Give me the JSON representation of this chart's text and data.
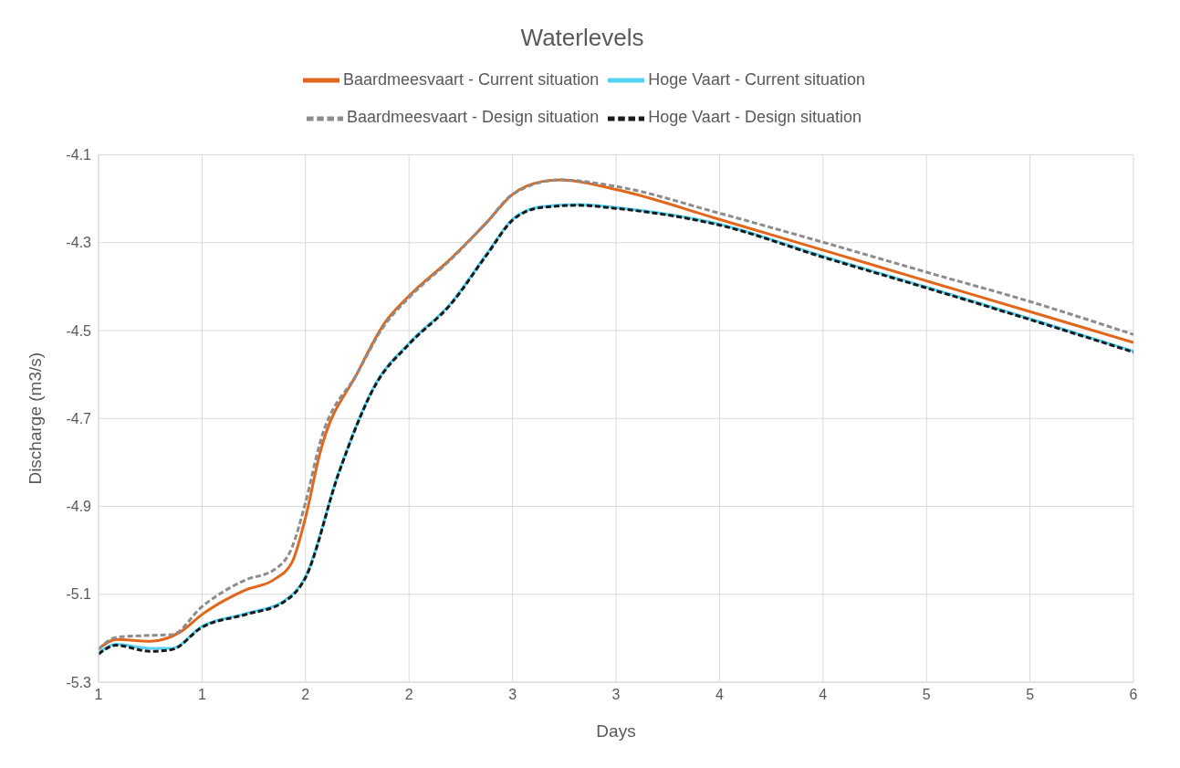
{
  "chart_data": {
    "type": "line",
    "title": "Waterlevels",
    "xlabel": "Days",
    "ylabel": "Discharge (m3/s)",
    "xlim": [
      1,
      6
    ],
    "xticks": [
      1,
      {
        "value": 1.5,
        "label": "1"
      },
      2,
      {
        "value": 2.5,
        "label": "2"
      },
      3,
      {
        "value": 3.5,
        "label": "3"
      },
      4,
      {
        "value": 4.5,
        "label": "4"
      },
      5,
      {
        "value": 5.5,
        "label": "5"
      },
      6
    ],
    "ylim": [
      -5.3,
      -4.1
    ],
    "yticks": [
      -5.3,
      -5.1,
      -4.9,
      -4.7,
      -4.5,
      -4.3,
      -4.1
    ],
    "grid": true,
    "legend": "top",
    "marker": "none",
    "series": [
      {
        "name": "Baardmeesvaart - Current situation",
        "color": "#e2661c",
        "line_style": "solid",
        "x": [
          1,
          1.085,
          1.25,
          1.398,
          1.5,
          1.712,
          1.846,
          1.935,
          2,
          2.07,
          2.25,
          2.38,
          2.5,
          2.7,
          2.875,
          3,
          3.14,
          3.23,
          3.5,
          4,
          4.5,
          5,
          5.5,
          6
        ],
        "values": [
          -5.225,
          -5.203,
          -5.207,
          -5.185,
          -5.146,
          -5.09,
          -5.067,
          -5.027,
          -4.925,
          -4.778,
          -4.597,
          -4.484,
          -4.421,
          -4.337,
          -4.254,
          -4.19,
          -4.161,
          -4.157,
          -4.179,
          -4.247,
          -4.317,
          -4.387,
          -4.457,
          -4.527
        ]
      },
      {
        "name": "Hoge Vaart - Current situation",
        "color": "#56d2f7",
        "line_style": "solid",
        "x": [
          1,
          1.085,
          1.25,
          1.354,
          1.5,
          1.712,
          1.89,
          2,
          2.16,
          2.34,
          2.5,
          2.7,
          2.875,
          3,
          3.14,
          3.32,
          3.5,
          4,
          4.5,
          5,
          5.5,
          6
        ],
        "values": [
          -5.234,
          -5.214,
          -5.223,
          -5.223,
          -5.173,
          -5.144,
          -5.117,
          -5.06,
          -4.823,
          -4.62,
          -4.529,
          -4.439,
          -4.326,
          -4.247,
          -4.218,
          -4.213,
          -4.22,
          -4.258,
          -4.331,
          -4.401,
          -4.473,
          -4.547
        ]
      },
      {
        "name": "Baardmeesvaart - Design situation",
        "color": "#8c8c8c",
        "line_style": "dashed",
        "x": [
          1,
          1.085,
          1.22,
          1.354,
          1.5,
          1.712,
          1.846,
          1.935,
          2,
          2.07,
          2.25,
          2.38,
          2.5,
          2.7,
          2.875,
          3,
          3.23,
          3.5,
          4,
          4.5,
          5,
          5.5,
          6
        ],
        "values": [
          -5.225,
          -5.198,
          -5.194,
          -5.192,
          -5.128,
          -5.067,
          -5.045,
          -4.993,
          -4.891,
          -4.755,
          -4.597,
          -4.489,
          -4.425,
          -4.339,
          -4.254,
          -4.19,
          -4.157,
          -4.172,
          -4.233,
          -4.299,
          -4.367,
          -4.434,
          -4.509
        ]
      },
      {
        "name": "Hoge Vaart - Design situation",
        "color": "#1a1a1a",
        "line_style": "dashed",
        "x": [
          1,
          1.085,
          1.25,
          1.354,
          1.5,
          1.712,
          1.89,
          2,
          2.16,
          2.34,
          2.5,
          2.7,
          2.875,
          3,
          3.14,
          3.32,
          3.5,
          4,
          4.5,
          5,
          5.5,
          6
        ],
        "values": [
          -5.236,
          -5.216,
          -5.23,
          -5.226,
          -5.175,
          -5.146,
          -5.119,
          -5.062,
          -4.825,
          -4.622,
          -4.531,
          -4.441,
          -4.328,
          -4.249,
          -4.22,
          -4.215,
          -4.222,
          -4.26,
          -4.333,
          -4.403,
          -4.475,
          -4.549
        ]
      }
    ]
  }
}
